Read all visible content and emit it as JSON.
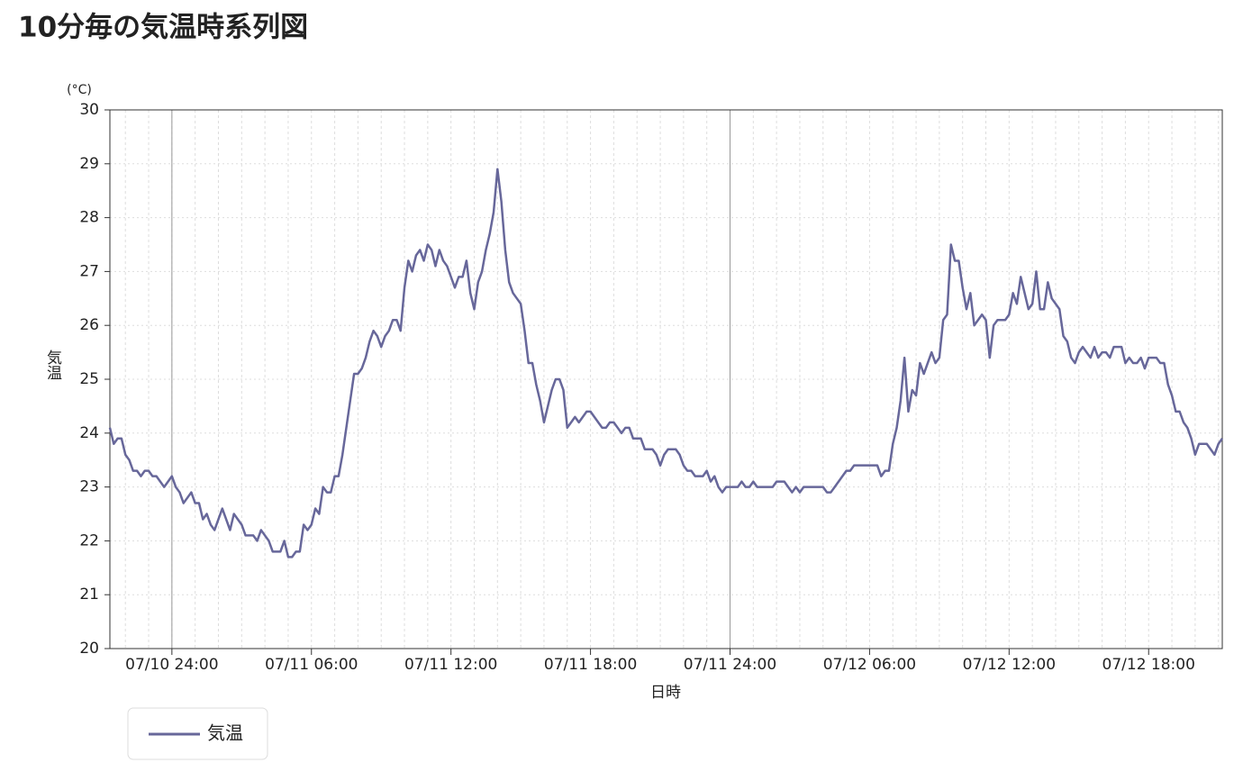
{
  "chart_data": {
    "type": "line",
    "title": "10分毎の気温時系列図",
    "y_unit": "(°C)",
    "ylabel": "気温",
    "xlabel": "日時",
    "ylim": [
      20,
      30
    ],
    "yticks": [
      20,
      21,
      22,
      23,
      24,
      25,
      26,
      27,
      28,
      29,
      30
    ],
    "grid": true,
    "legend": "bottom-left",
    "xlim": [
      "07/10 21:20",
      "07/12 21:10"
    ],
    "xticks": [
      "07/10 24:00",
      "07/11 06:00",
      "07/11 12:00",
      "07/11 18:00",
      "07/11 24:00",
      "07/12 06:00",
      "07/12 12:00",
      "07/12 18:00"
    ],
    "x": [
      "07/10 21:20",
      "07/10 21:30",
      "07/10 21:40",
      "07/10 21:50",
      "07/10 22:00",
      "07/10 22:10",
      "07/10 22:20",
      "07/10 22:30",
      "07/10 22:40",
      "07/10 22:50",
      "07/10 23:00",
      "07/10 23:10",
      "07/10 23:20",
      "07/10 23:30",
      "07/10 23:40",
      "07/10 23:50",
      "07/10 24:00",
      "07/11 00:10",
      "07/11 00:20",
      "07/11 00:30",
      "07/11 00:40",
      "07/11 00:50",
      "07/11 01:00",
      "07/11 01:10",
      "07/11 01:20",
      "07/11 01:30",
      "07/11 01:40",
      "07/11 01:50",
      "07/11 02:00",
      "07/11 02:10",
      "07/11 02:20",
      "07/11 02:30",
      "07/11 02:40",
      "07/11 02:50",
      "07/11 03:00",
      "07/11 03:10",
      "07/11 03:20",
      "07/11 03:30",
      "07/11 03:40",
      "07/11 03:50",
      "07/11 04:00",
      "07/11 04:10",
      "07/11 04:20",
      "07/11 04:30",
      "07/11 04:40",
      "07/11 04:50",
      "07/11 05:00",
      "07/11 05:10",
      "07/11 05:20",
      "07/11 05:30",
      "07/11 05:40",
      "07/11 05:50",
      "07/11 06:00",
      "07/11 06:10",
      "07/11 06:20",
      "07/11 06:30",
      "07/11 06:40",
      "07/11 06:50",
      "07/11 07:00",
      "07/11 07:10",
      "07/11 07:20",
      "07/11 07:30",
      "07/11 07:40",
      "07/11 07:50",
      "07/11 08:00",
      "07/11 08:10",
      "07/11 08:20",
      "07/11 08:30",
      "07/11 08:40",
      "07/11 08:50",
      "07/11 09:00",
      "07/11 09:10",
      "07/11 09:20",
      "07/11 09:30",
      "07/11 09:40",
      "07/11 09:50",
      "07/11 10:00",
      "07/11 10:10",
      "07/11 10:20",
      "07/11 10:30",
      "07/11 10:40",
      "07/11 10:50",
      "07/11 11:00",
      "07/11 11:10",
      "07/11 11:20",
      "07/11 11:30",
      "07/11 11:40",
      "07/11 11:50",
      "07/11 12:00",
      "07/11 12:10",
      "07/11 12:20",
      "07/11 12:30",
      "07/11 12:40",
      "07/11 12:50",
      "07/11 13:00",
      "07/11 13:10",
      "07/11 13:20",
      "07/11 13:30",
      "07/11 13:40",
      "07/11 13:50",
      "07/11 14:00",
      "07/11 14:10",
      "07/11 14:20",
      "07/11 14:30",
      "07/11 14:40",
      "07/11 14:50",
      "07/11 15:00",
      "07/11 15:10",
      "07/11 15:20",
      "07/11 15:30",
      "07/11 15:40",
      "07/11 15:50",
      "07/11 16:00",
      "07/11 16:10",
      "07/11 16:20",
      "07/11 16:30",
      "07/11 16:40",
      "07/11 16:50",
      "07/11 17:00",
      "07/11 17:10",
      "07/11 17:20",
      "07/11 17:30",
      "07/11 17:40",
      "07/11 17:50",
      "07/11 18:00",
      "07/11 18:10",
      "07/11 18:20",
      "07/11 18:30",
      "07/11 18:40",
      "07/11 18:50",
      "07/11 19:00",
      "07/11 19:10",
      "07/11 19:20",
      "07/11 19:30",
      "07/11 19:40",
      "07/11 19:50",
      "07/11 20:00",
      "07/11 20:10",
      "07/11 20:20",
      "07/11 20:30",
      "07/11 20:40",
      "07/11 20:50",
      "07/11 21:00",
      "07/11 21:10",
      "07/11 21:20",
      "07/11 21:30",
      "07/11 21:40",
      "07/11 21:50",
      "07/11 22:00",
      "07/11 22:10",
      "07/11 22:20",
      "07/11 22:30",
      "07/11 22:40",
      "07/11 22:50",
      "07/11 23:00",
      "07/11 23:10",
      "07/11 23:20",
      "07/11 23:30",
      "07/11 23:40",
      "07/11 23:50",
      "07/11 24:00",
      "07/12 00:10",
      "07/12 00:20",
      "07/12 00:30",
      "07/12 00:40",
      "07/12 00:50",
      "07/12 01:00",
      "07/12 01:10",
      "07/12 01:20",
      "07/12 01:30",
      "07/12 01:40",
      "07/12 01:50",
      "07/12 02:00",
      "07/12 02:10",
      "07/12 02:20",
      "07/12 02:30",
      "07/12 02:40",
      "07/12 02:50",
      "07/12 03:00",
      "07/12 03:10",
      "07/12 03:20",
      "07/12 03:30",
      "07/12 03:40",
      "07/12 03:50",
      "07/12 04:00",
      "07/12 04:10",
      "07/12 04:20",
      "07/12 04:30",
      "07/12 04:40",
      "07/12 04:50",
      "07/12 05:00",
      "07/12 05:10",
      "07/12 05:20",
      "07/12 05:30",
      "07/12 05:40",
      "07/12 05:50",
      "07/12 06:00",
      "07/12 06:10",
      "07/12 06:20",
      "07/12 06:30",
      "07/12 06:40",
      "07/12 06:50",
      "07/12 07:00",
      "07/12 07:10",
      "07/12 07:20",
      "07/12 07:30",
      "07/12 07:40",
      "07/12 07:50",
      "07/12 08:00",
      "07/12 08:10",
      "07/12 08:20",
      "07/12 08:30",
      "07/12 08:40",
      "07/12 08:50",
      "07/12 09:00",
      "07/12 09:10",
      "07/12 09:20",
      "07/12 09:30",
      "07/12 09:40",
      "07/12 09:50",
      "07/12 10:00",
      "07/12 10:10",
      "07/12 10:20",
      "07/12 10:30",
      "07/12 10:40",
      "07/12 10:50",
      "07/12 11:00",
      "07/12 11:10",
      "07/12 11:20",
      "07/12 11:30",
      "07/12 11:40",
      "07/12 11:50",
      "07/12 12:00",
      "07/12 12:10",
      "07/12 12:20",
      "07/12 12:30",
      "07/12 12:40",
      "07/12 12:50",
      "07/12 13:00",
      "07/12 13:10",
      "07/12 13:20",
      "07/12 13:30",
      "07/12 13:40",
      "07/12 13:50",
      "07/12 14:00",
      "07/12 14:10",
      "07/12 14:20",
      "07/12 14:30",
      "07/12 14:40",
      "07/12 14:50",
      "07/12 15:00",
      "07/12 15:10",
      "07/12 15:20",
      "07/12 15:30",
      "07/12 15:40",
      "07/12 15:50",
      "07/12 16:00",
      "07/12 16:10",
      "07/12 16:20",
      "07/12 16:30",
      "07/12 16:40",
      "07/12 16:50",
      "07/12 17:00",
      "07/12 17:10",
      "07/12 17:20",
      "07/12 17:30",
      "07/12 17:40",
      "07/12 17:50",
      "07/12 18:00",
      "07/12 18:10",
      "07/12 18:20",
      "07/12 18:30",
      "07/12 18:40",
      "07/12 18:50",
      "07/12 19:00",
      "07/12 19:10",
      "07/12 19:20",
      "07/12 19:30",
      "07/12 19:40",
      "07/12 19:50",
      "07/12 20:00",
      "07/12 20:10",
      "07/12 20:20",
      "07/12 20:30",
      "07/12 20:40",
      "07/12 20:50",
      "07/12 21:00",
      "07/12 21:10"
    ],
    "series": [
      {
        "name": "気温",
        "color": "#67679a",
        "values": [
          24.1,
          23.8,
          23.9,
          23.9,
          23.6,
          23.5,
          23.3,
          23.3,
          23.2,
          23.3,
          23.3,
          23.2,
          23.2,
          23.1,
          23.0,
          23.1,
          23.2,
          23.0,
          22.9,
          22.7,
          22.8,
          22.9,
          22.7,
          22.7,
          22.4,
          22.5,
          22.3,
          22.2,
          22.4,
          22.6,
          22.4,
          22.2,
          22.5,
          22.4,
          22.3,
          22.1,
          22.1,
          22.1,
          22.0,
          22.2,
          22.1,
          22.0,
          21.8,
          21.8,
          21.8,
          22.0,
          21.7,
          21.7,
          21.8,
          21.8,
          22.3,
          22.2,
          22.3,
          22.6,
          22.5,
          23.0,
          22.9,
          22.9,
          23.2,
          23.2,
          23.6,
          24.1,
          24.6,
          25.1,
          25.1,
          25.2,
          25.4,
          25.7,
          25.9,
          25.8,
          25.6,
          25.8,
          25.9,
          26.1,
          26.1,
          25.9,
          26.7,
          27.2,
          27.0,
          27.3,
          27.4,
          27.2,
          27.5,
          27.4,
          27.1,
          27.4,
          27.2,
          27.1,
          26.9,
          26.7,
          26.9,
          26.9,
          27.2,
          26.6,
          26.3,
          26.8,
          27.0,
          27.4,
          27.7,
          28.1,
          28.9,
          28.3,
          27.4,
          26.8,
          26.6,
          26.5,
          26.4,
          25.9,
          25.3,
          25.3,
          24.9,
          24.6,
          24.2,
          24.5,
          24.8,
          25.0,
          25.0,
          24.8,
          24.1,
          24.2,
          24.3,
          24.2,
          24.3,
          24.4,
          24.4,
          24.3,
          24.2,
          24.1,
          24.1,
          24.2,
          24.2,
          24.1,
          24.0,
          24.1,
          24.1,
          23.9,
          23.9,
          23.9,
          23.7,
          23.7,
          23.7,
          23.6,
          23.4,
          23.6,
          23.7,
          23.7,
          23.7,
          23.6,
          23.4,
          23.3,
          23.3,
          23.2,
          23.2,
          23.2,
          23.3,
          23.1,
          23.2,
          23.0,
          22.9,
          23.0,
          23.0,
          23.0,
          23.0,
          23.1,
          23.0,
          23.0,
          23.1,
          23.0,
          23.0,
          23.0,
          23.0,
          23.0,
          23.1,
          23.1,
          23.1,
          23.0,
          22.9,
          23.0,
          22.9,
          23.0,
          23.0,
          23.0,
          23.0,
          23.0,
          23.0,
          22.9,
          22.9,
          23.0,
          23.1,
          23.2,
          23.3,
          23.3,
          23.4,
          23.4,
          23.4,
          23.4,
          23.4,
          23.4,
          23.4,
          23.2,
          23.3,
          23.3,
          23.8,
          24.1,
          24.6,
          25.4,
          24.4,
          24.8,
          24.7,
          25.3,
          25.1,
          25.3,
          25.5,
          25.3,
          25.4,
          26.1,
          26.2,
          27.5,
          27.2,
          27.2,
          26.7,
          26.3,
          26.6,
          26.0,
          26.1,
          26.2,
          26.1,
          25.4,
          26.0,
          26.1,
          26.1,
          26.1,
          26.2,
          26.6,
          26.4,
          26.9,
          26.6,
          26.3,
          26.4,
          27.0,
          26.3,
          26.3,
          26.8,
          26.5,
          26.4,
          26.3,
          25.8,
          25.7,
          25.4,
          25.3,
          25.5,
          25.6,
          25.5,
          25.4,
          25.6,
          25.4,
          25.5,
          25.5,
          25.4,
          25.6,
          25.6,
          25.6,
          25.3,
          25.4,
          25.3,
          25.3,
          25.4,
          25.2,
          25.4,
          25.4,
          25.4,
          25.3,
          25.3,
          24.9,
          24.7,
          24.4,
          24.4,
          24.2,
          24.1,
          23.9,
          23.6,
          23.8,
          23.8,
          23.8,
          23.7,
          23.6,
          23.8,
          23.9
        ]
      }
    ]
  }
}
